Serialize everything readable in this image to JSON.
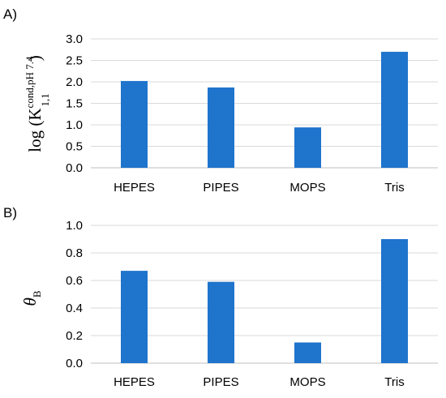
{
  "chart_data": [
    {
      "type": "bar",
      "panel_label": "A)",
      "categories": [
        "HEPES",
        "PIPES",
        "MOPS",
        "Tris"
      ],
      "values": [
        2.02,
        1.87,
        0.94,
        2.7
      ],
      "ylim": [
        0,
        3.0
      ],
      "yticks": [
        "0.0",
        "0.5",
        "1.0",
        "1.5",
        "2.0",
        "2.5",
        "3.0"
      ],
      "ylabel": {
        "text": "log (K",
        "subscript": "1,1",
        "superscript": "cond,pH 7.4",
        "close": ")"
      },
      "bar_color": "#1f74cc",
      "grid": true
    },
    {
      "type": "bar",
      "panel_label": "B)",
      "categories": [
        "HEPES",
        "PIPES",
        "MOPS",
        "Tris"
      ],
      "values": [
        0.67,
        0.59,
        0.15,
        0.9
      ],
      "ylim": [
        0,
        1.0
      ],
      "yticks": [
        "0.0",
        "0.2",
        "0.4",
        "0.6",
        "0.8",
        "1.0"
      ],
      "ylabel": {
        "text": "θ",
        "subscript": "B"
      },
      "bar_color": "#1f74cc",
      "grid": true
    }
  ]
}
